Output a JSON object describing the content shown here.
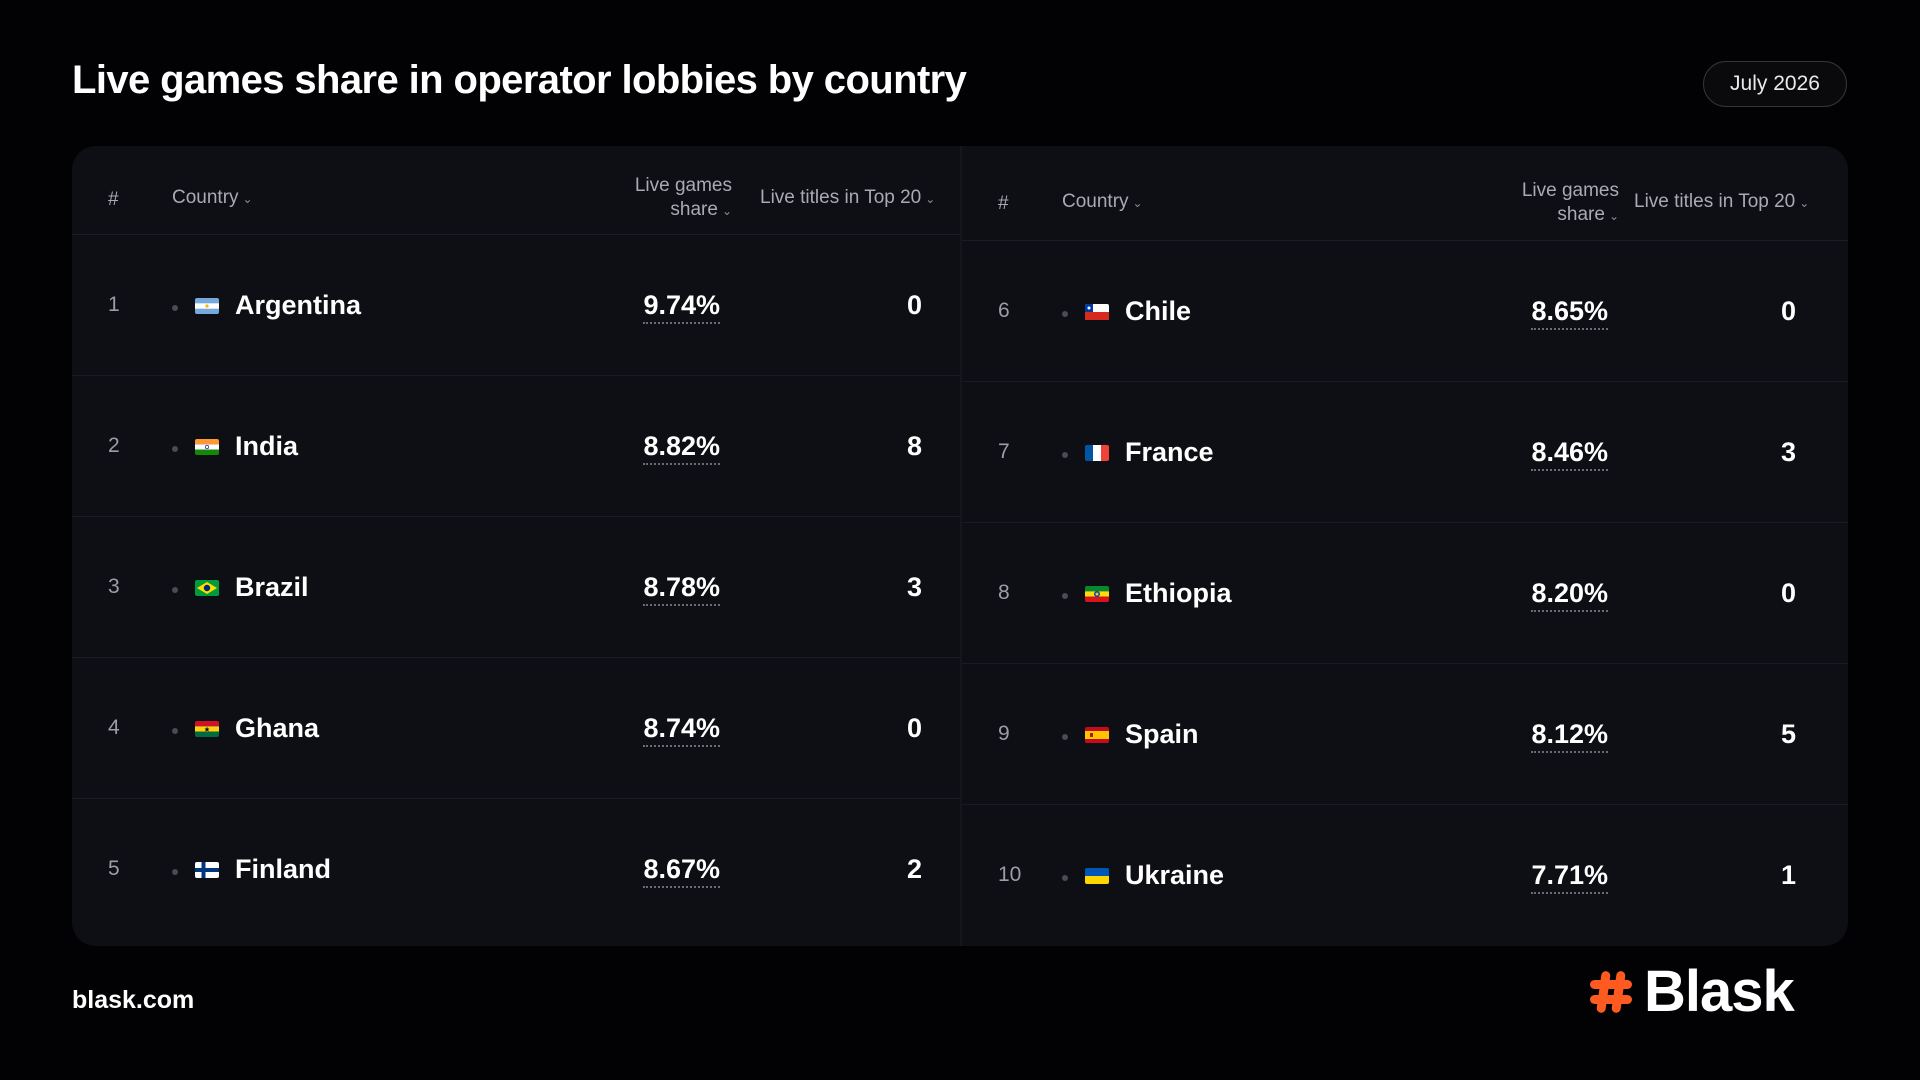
{
  "header": {
    "title": "Live games share in operator lobbies by country",
    "date": "July 2026"
  },
  "table": {
    "columns": {
      "rank": "#",
      "country": "Country",
      "share_line1": "Live games",
      "share_line2": "share",
      "top20": "Live titles in Top 20"
    },
    "left_rows": [
      {
        "rank": "1",
        "country": "Argentina",
        "share": "9.74%",
        "top20": "0",
        "flag": "argentina-flag-icon"
      },
      {
        "rank": "2",
        "country": "India",
        "share": "8.82%",
        "top20": "8",
        "flag": "india-flag-icon"
      },
      {
        "rank": "3",
        "country": "Brazil",
        "share": "8.78%",
        "top20": "3",
        "flag": "brazil-flag-icon"
      },
      {
        "rank": "4",
        "country": "Ghana",
        "share": "8.74%",
        "top20": "0",
        "flag": "ghana-flag-icon"
      },
      {
        "rank": "5",
        "country": "Finland",
        "share": "8.67%",
        "top20": "2",
        "flag": "finland-flag-icon"
      }
    ],
    "right_rows": [
      {
        "rank": "6",
        "country": "Chile",
        "share": "8.65%",
        "top20": "0",
        "flag": "chile-flag-icon"
      },
      {
        "rank": "7",
        "country": "France",
        "share": "8.46%",
        "top20": "3",
        "flag": "france-flag-icon"
      },
      {
        "rank": "8",
        "country": "Ethiopia",
        "share": "8.20%",
        "top20": "0",
        "flag": "ethiopia-flag-icon"
      },
      {
        "rank": "9",
        "country": "Spain",
        "share": "8.12%",
        "top20": "5",
        "flag": "spain-flag-icon"
      },
      {
        "rank": "10",
        "country": "Ukraine",
        "share": "7.71%",
        "top20": "1",
        "flag": "ukraine-flag-icon"
      }
    ]
  },
  "footer": {
    "url": "blask.com",
    "brand": "Blask",
    "brand_icon": "hash-logo-icon",
    "brand_color": "#ff5a1f"
  },
  "colors": {
    "background": "#020204",
    "panel": "#0e0f14",
    "muted_text": "#a9aab3"
  }
}
